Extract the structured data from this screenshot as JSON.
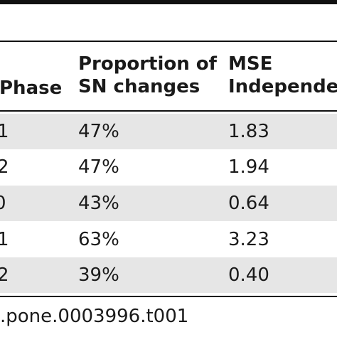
{
  "table": {
    "headers": {
      "phase": "Phase",
      "proportion_line1": "Proportion of",
      "proportion_line2": "SN changes",
      "mse_line1": "MSE",
      "mse_line2": "Independen"
    },
    "rows": [
      {
        "phase": "1",
        "proportion": "47%",
        "mse": "1.83"
      },
      {
        "phase": "2",
        "proportion": "47%",
        "mse": "1.94"
      },
      {
        "phase": "0",
        "proportion": "43%",
        "mse": "0.64"
      },
      {
        "phase": "1",
        "proportion": "63%",
        "mse": "3.23"
      },
      {
        "phase": "2",
        "proportion": "39%",
        "mse": "0.40"
      }
    ]
  },
  "footer": {
    "doi_text": ".pone.0003996.t001"
  }
}
